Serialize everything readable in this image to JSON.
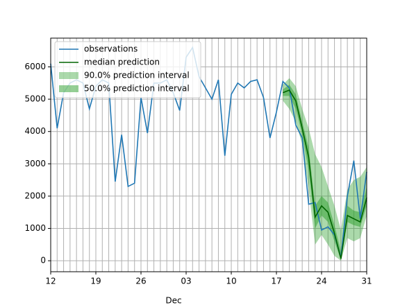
{
  "chart_data": {
    "type": "forecast",
    "xlim": [
      "11-12",
      "12-31"
    ],
    "xticks": [
      {
        "value": "11-12",
        "label": "12"
      },
      {
        "value": "11-19",
        "label": "19"
      },
      {
        "value": "11-26",
        "label": "26"
      },
      {
        "value": "12-03",
        "label": "03"
      },
      {
        "value": "12-10",
        "label": "10"
      },
      {
        "value": "12-17",
        "label": "17"
      },
      {
        "value": "12-24",
        "label": "24"
      },
      {
        "value": "12-31",
        "label": "31"
      }
    ],
    "month_label": {
      "value": "12-03",
      "label": "Dec"
    },
    "ylim": [
      -340,
      6890
    ],
    "yticks": [
      0,
      1000,
      2000,
      3000,
      4000,
      5000,
      6000
    ],
    "grid": true,
    "minor_xgrid": "daily",
    "legend": "upper left",
    "series": [
      {
        "name": "observations",
        "color": "#1f77b4",
        "x": [
          "11-12",
          "11-13",
          "11-14",
          "11-15",
          "11-16",
          "11-17",
          "11-18",
          "11-19",
          "11-20",
          "11-21",
          "11-22",
          "11-23",
          "11-24",
          "11-25",
          "11-26",
          "11-27",
          "11-28",
          "11-29",
          "11-30",
          "12-01",
          "12-02",
          "12-03",
          "12-04",
          "12-05",
          "12-06",
          "12-07",
          "12-08",
          "12-09",
          "12-10",
          "12-11",
          "12-12",
          "12-13",
          "12-14",
          "12-15",
          "12-16",
          "12-17",
          "12-18",
          "12-19",
          "12-20",
          "12-21",
          "12-22",
          "12-23",
          "12-24",
          "12-25",
          "12-26",
          "12-27",
          "12-28",
          "12-29",
          "12-30",
          "12-31"
        ],
        "values": [
          6100,
          4100,
          5200,
          5500,
          5600,
          5500,
          4700,
          5400,
          5600,
          5500,
          2450,
          3900,
          2300,
          2400,
          5050,
          3950,
          5500,
          5500,
          5600,
          5200,
          4650,
          6300,
          6600,
          5700,
          5350,
          5000,
          5600,
          3250,
          5150,
          5500,
          5350,
          5550,
          5600,
          5050,
          3800,
          4600,
          5550,
          5350,
          4200,
          3800,
          1750,
          1800,
          950,
          1050,
          800,
          100,
          2000,
          3100,
          1300,
          2750
        ]
      },
      {
        "name": "median prediction",
        "color": "#006400",
        "x": [
          "12-18",
          "12-19",
          "12-20",
          "12-21",
          "12-22",
          "12-23",
          "12-24",
          "12-25",
          "12-26",
          "12-27",
          "12-28",
          "12-29",
          "12-30",
          "12-31"
        ],
        "values": [
          5200,
          5280,
          4950,
          4100,
          3200,
          1350,
          1700,
          1500,
          850,
          60,
          1400,
          1300,
          1200,
          1950
        ]
      }
    ],
    "intervals": [
      {
        "name": "90.0% prediction interval",
        "color": "#2ca02c",
        "opacity": 0.4,
        "x": [
          "12-18",
          "12-19",
          "12-20",
          "12-21",
          "12-22",
          "12-23",
          "12-24",
          "12-25",
          "12-26",
          "12-27",
          "12-28",
          "12-29",
          "12-30",
          "12-31"
        ],
        "lower": [
          4950,
          4700,
          4300,
          3600,
          2200,
          500,
          800,
          500,
          150,
          0,
          700,
          600,
          700,
          1400
        ],
        "upper": [
          5450,
          5650,
          5400,
          4700,
          4100,
          3300,
          2900,
          2300,
          1700,
          950,
          2200,
          2500,
          2600,
          2900
        ]
      },
      {
        "name": "50.0% prediction interval",
        "color": "#2ca02c",
        "opacity": 0.5,
        "x": [
          "12-18",
          "12-19",
          "12-20",
          "12-21",
          "12-22",
          "12-23",
          "12-24",
          "12-25",
          "12-26",
          "12-27",
          "12-28",
          "12-29",
          "12-30",
          "12-31"
        ],
        "lower": [
          5100,
          5100,
          4700,
          3900,
          2800,
          1000,
          1400,
          1200,
          600,
          20,
          1200,
          1100,
          1050,
          1700
        ],
        "upper": [
          5300,
          5450,
          5150,
          4300,
          3500,
          1700,
          2000,
          1800,
          1100,
          300,
          1700,
          1550,
          1500,
          2300
        ]
      }
    ]
  }
}
